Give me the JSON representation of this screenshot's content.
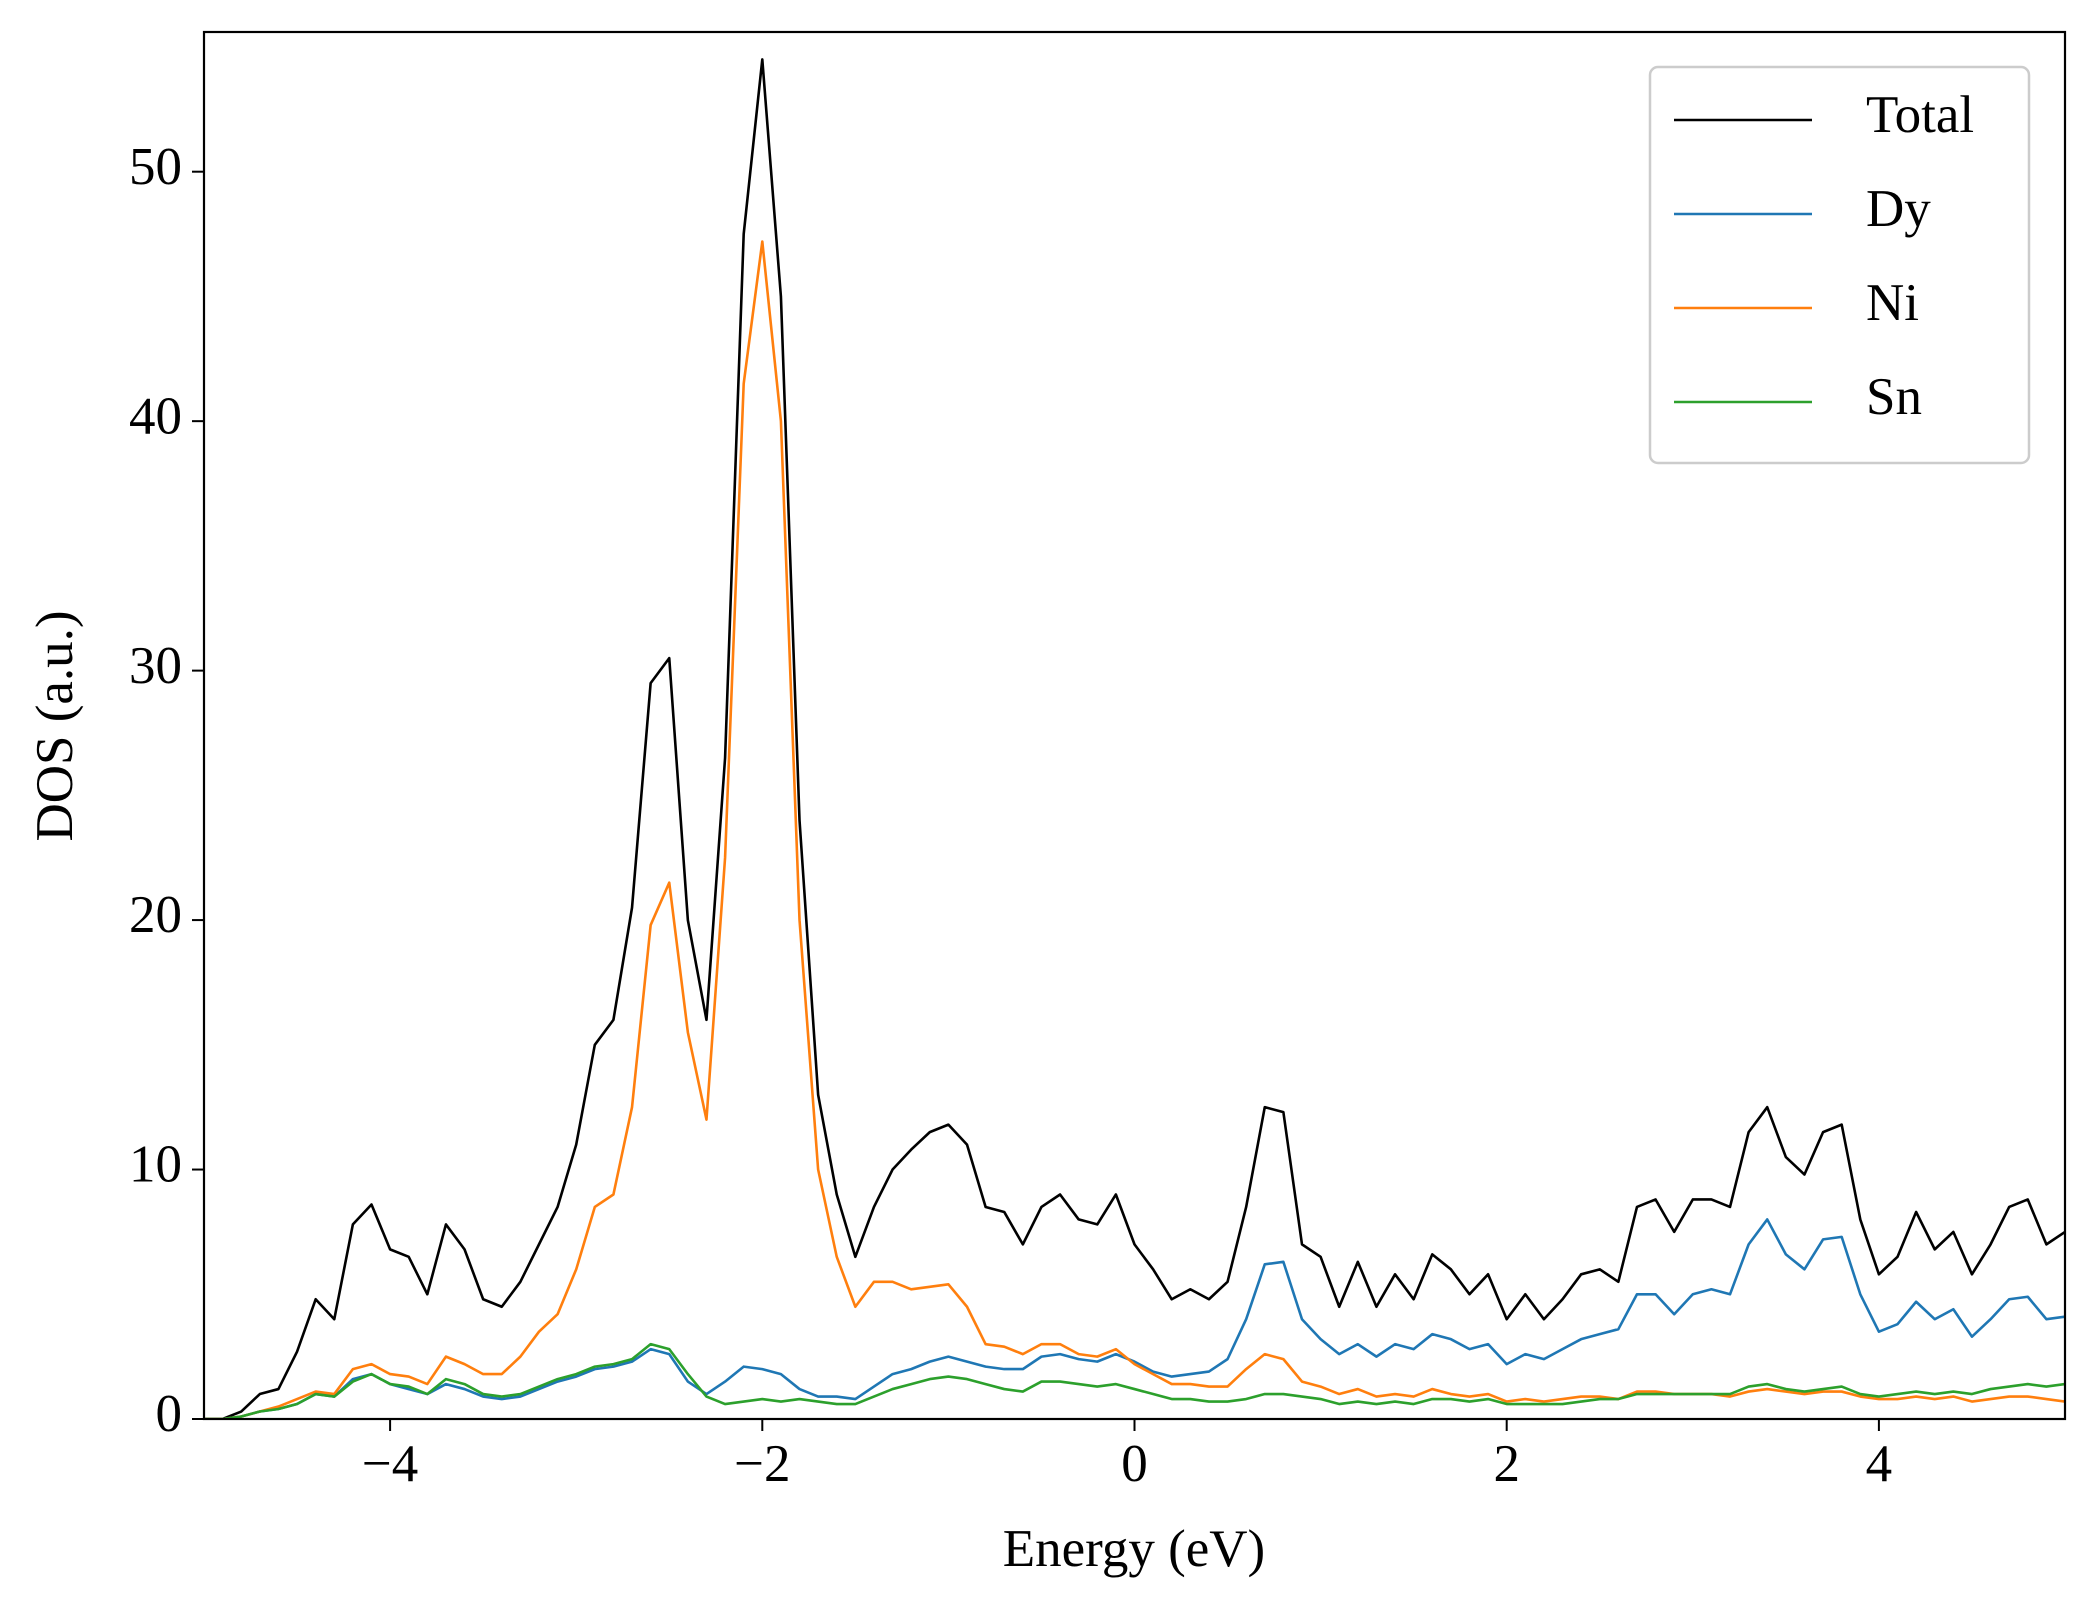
{
  "chart_data": {
    "type": "line",
    "xlabel": "Energy (eV)",
    "ylabel": "DOS (a.u.)",
    "x": [
      -5.0,
      -4.9,
      -4.8,
      -4.7,
      -4.6,
      -4.5,
      -4.4,
      -4.3,
      -4.2,
      -4.1,
      -4.0,
      -3.9,
      -3.8,
      -3.7,
      -3.6,
      -3.5,
      -3.4,
      -3.3,
      -3.2,
      -3.1,
      -3.0,
      -2.9,
      -2.8,
      -2.7,
      -2.6,
      -2.5,
      -2.4,
      -2.3,
      -2.2,
      -2.1,
      -2.0,
      -1.9,
      -1.8,
      -1.7,
      -1.6,
      -1.5,
      -1.4,
      -1.3,
      -1.2,
      -1.1,
      -1.0,
      -0.9,
      -0.8,
      -0.7,
      -0.6,
      -0.5,
      -0.4,
      -0.3,
      -0.2,
      -0.1,
      0.0,
      0.1,
      0.2,
      0.3,
      0.4,
      0.5,
      0.6,
      0.7,
      0.8,
      0.9,
      1.0,
      1.1,
      1.2,
      1.3,
      1.4,
      1.5,
      1.6,
      1.7,
      1.8,
      1.9,
      2.0,
      2.1,
      2.2,
      2.3,
      2.4,
      2.5,
      2.6,
      2.7,
      2.8,
      2.9,
      3.0,
      3.1,
      3.2,
      3.3,
      3.4,
      3.5,
      3.6,
      3.7,
      3.8,
      3.9,
      4.0,
      4.1,
      4.2,
      4.3,
      4.4,
      4.5,
      4.6,
      4.7,
      4.8,
      4.9,
      5.0
    ],
    "series": [
      {
        "name": "Total",
        "color": "#000000",
        "values": [
          0,
          0,
          0.3,
          1.0,
          1.2,
          2.7,
          4.8,
          4.0,
          7.8,
          8.6,
          6.8,
          6.5,
          5.0,
          7.8,
          6.8,
          4.8,
          4.5,
          5.5,
          7.0,
          8.5,
          11.0,
          15.0,
          16.0,
          20.5,
          29.5,
          30.5,
          20.0,
          16.0,
          26.5,
          47.5,
          54.5,
          45.0,
          24.0,
          13.0,
          9.0,
          6.5,
          8.5,
          10.0,
          10.8,
          11.5,
          11.8,
          11.0,
          8.5,
          8.3,
          7.0,
          8.5,
          9.0,
          8.0,
          7.8,
          9.0,
          7.0,
          6.0,
          4.8,
          5.2,
          4.8,
          5.5,
          8.5,
          12.5,
          12.3,
          7.0,
          6.5,
          4.5,
          6.3,
          4.5,
          5.8,
          4.8,
          6.6,
          6.0,
          5.0,
          5.8,
          4.0,
          5.0,
          4.0,
          4.8,
          5.8,
          6.0,
          5.5,
          8.5,
          8.8,
          7.5,
          8.8,
          8.8,
          8.5,
          11.5,
          12.5,
          10.5,
          9.8,
          11.5,
          11.8,
          8.0,
          5.8,
          6.5,
          8.3,
          6.8,
          7.5,
          5.8,
          7.0,
          8.5,
          8.8,
          7.0,
          7.5
        ]
      },
      {
        "name": "Dy",
        "color": "#1f77b4",
        "values": [
          0,
          0,
          0.1,
          0.3,
          0.4,
          0.6,
          1.0,
          0.9,
          1.6,
          1.8,
          1.4,
          1.2,
          1.0,
          1.4,
          1.2,
          0.9,
          0.8,
          0.9,
          1.2,
          1.5,
          1.7,
          2.0,
          2.1,
          2.3,
          2.8,
          2.6,
          1.5,
          1.0,
          1.5,
          2.1,
          2.0,
          1.8,
          1.2,
          0.9,
          0.9,
          0.8,
          1.3,
          1.8,
          2.0,
          2.3,
          2.5,
          2.3,
          2.1,
          2.0,
          2.0,
          2.5,
          2.6,
          2.4,
          2.3,
          2.6,
          2.3,
          1.9,
          1.7,
          1.8,
          1.9,
          2.4,
          4.0,
          6.2,
          6.3,
          4.0,
          3.2,
          2.6,
          3.0,
          2.5,
          3.0,
          2.8,
          3.4,
          3.2,
          2.8,
          3.0,
          2.2,
          2.6,
          2.4,
          2.8,
          3.2,
          3.4,
          3.6,
          5.0,
          5.0,
          4.2,
          5.0,
          5.2,
          5.0,
          7.0,
          8.0,
          6.6,
          6.0,
          7.2,
          7.3,
          5.0,
          3.5,
          3.8,
          4.7,
          4.0,
          4.4,
          3.3,
          4.0,
          4.8,
          4.9,
          4.0,
          4.1
        ]
      },
      {
        "name": "Ni",
        "color": "#ff7f0e",
        "values": [
          0,
          0,
          0.1,
          0.3,
          0.5,
          0.8,
          1.1,
          1.0,
          2.0,
          2.2,
          1.8,
          1.7,
          1.4,
          2.5,
          2.2,
          1.8,
          1.8,
          2.5,
          3.5,
          4.2,
          6.0,
          8.5,
          9.0,
          12.5,
          19.8,
          21.5,
          15.5,
          12.0,
          22.5,
          41.5,
          47.2,
          40.0,
          20.0,
          10.0,
          6.5,
          4.5,
          5.5,
          5.5,
          5.2,
          5.3,
          5.4,
          4.5,
          3.0,
          2.9,
          2.6,
          3.0,
          3.0,
          2.6,
          2.5,
          2.8,
          2.2,
          1.8,
          1.4,
          1.4,
          1.3,
          1.3,
          2.0,
          2.6,
          2.4,
          1.5,
          1.3,
          1.0,
          1.2,
          0.9,
          1.0,
          0.9,
          1.2,
          1.0,
          0.9,
          1.0,
          0.7,
          0.8,
          0.7,
          0.8,
          0.9,
          0.9,
          0.8,
          1.1,
          1.1,
          1.0,
          1.0,
          1.0,
          0.9,
          1.1,
          1.2,
          1.1,
          1.0,
          1.1,
          1.1,
          0.9,
          0.8,
          0.8,
          0.9,
          0.8,
          0.9,
          0.7,
          0.8,
          0.9,
          0.9,
          0.8,
          0.7
        ]
      },
      {
        "name": "Sn",
        "color": "#2ca02c",
        "values": [
          0,
          0,
          0.1,
          0.3,
          0.4,
          0.6,
          1.0,
          0.9,
          1.5,
          1.8,
          1.4,
          1.3,
          1.0,
          1.6,
          1.4,
          1.0,
          0.9,
          1.0,
          1.3,
          1.6,
          1.8,
          2.1,
          2.2,
          2.4,
          3.0,
          2.8,
          1.8,
          0.9,
          0.6,
          0.7,
          0.8,
          0.7,
          0.8,
          0.7,
          0.6,
          0.6,
          0.9,
          1.2,
          1.4,
          1.6,
          1.7,
          1.6,
          1.4,
          1.2,
          1.1,
          1.5,
          1.5,
          1.4,
          1.3,
          1.4,
          1.2,
          1.0,
          0.8,
          0.8,
          0.7,
          0.7,
          0.8,
          1.0,
          1.0,
          0.9,
          0.8,
          0.6,
          0.7,
          0.6,
          0.7,
          0.6,
          0.8,
          0.8,
          0.7,
          0.8,
          0.6,
          0.6,
          0.6,
          0.6,
          0.7,
          0.8,
          0.8,
          1.0,
          1.0,
          1.0,
          1.0,
          1.0,
          1.0,
          1.3,
          1.4,
          1.2,
          1.1,
          1.2,
          1.3,
          1.0,
          0.9,
          1.0,
          1.1,
          1.0,
          1.1,
          1.0,
          1.2,
          1.3,
          1.4,
          1.3,
          1.4
        ]
      }
    ],
    "xlim": [
      -5,
      5
    ],
    "xticks": [
      {
        "value": -4,
        "label": "−4"
      },
      {
        "value": -2,
        "label": "−2"
      },
      0,
      2,
      4
    ],
    "ylim": [
      0,
      55.6
    ],
    "yticks": [
      0,
      10,
      20,
      30,
      40,
      50
    ],
    "grid": false,
    "legend": "upper right"
  }
}
